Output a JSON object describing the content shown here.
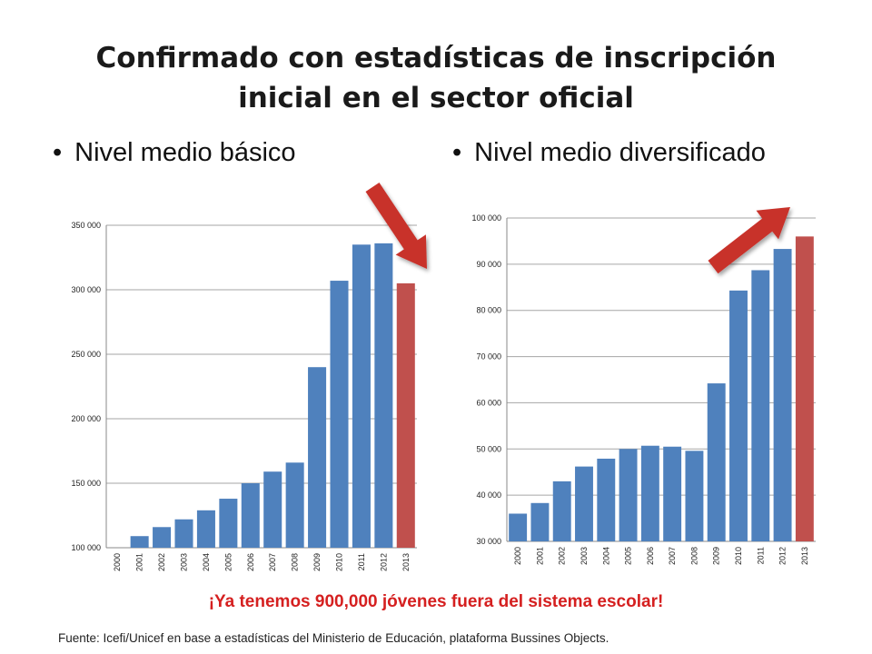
{
  "slide": {
    "title_line1": "Confirmado con estadísticas de inscripción",
    "title_line2": "inicial en el sector oficial",
    "left_heading": "Nivel medio básico",
    "right_heading": "Nivel medio diversificado",
    "highlight": "¡Ya tenemos 900,000 jóvenes fuera del sistema escolar!",
    "source": "Fuente: Icefi/Unicef en base a estadísticas del Ministerio de Educación, plataforma Bussines Objects.",
    "bullet": "•"
  },
  "colors": {
    "bar": "#4f81bd",
    "highlight_bar": "#c0504d",
    "arrow": "#c8312c",
    "grid": "#a6a6a6",
    "highlight_text": "#d52020"
  },
  "chart_data": [
    {
      "type": "bar",
      "title": "",
      "xlabel": "",
      "ylabel": "",
      "ylim": [
        100000,
        350000
      ],
      "yticks": [
        "100 000",
        "150 000",
        "200 000",
        "250 000",
        "300 000",
        "350 000"
      ],
      "grid": true,
      "categories": [
        "2000",
        "2001",
        "2002",
        "2003",
        "2004",
        "2005",
        "2006",
        "2007",
        "2008",
        "2009",
        "2010",
        "2011",
        "2012",
        "2013"
      ],
      "values": [
        100000,
        109000,
        116000,
        122000,
        129000,
        138000,
        150000,
        159000,
        166000,
        240000,
        307000,
        335000,
        336000,
        305000
      ],
      "highlight_index": 13,
      "annotation_arrow": "down"
    },
    {
      "type": "bar",
      "title": "",
      "xlabel": "",
      "ylabel": "",
      "ylim": [
        30000,
        100000
      ],
      "yticks": [
        "30 000",
        "40 000",
        "50 000",
        "60 000",
        "70 000",
        "80 000",
        "90 000",
        "100 000"
      ],
      "grid": true,
      "categories": [
        "2000",
        "2001",
        "2002",
        "2003",
        "2004",
        "2005",
        "2006",
        "2007",
        "2008",
        "2009",
        "2010",
        "2011",
        "2012",
        "2013"
      ],
      "values": [
        36000,
        38300,
        43000,
        46200,
        47900,
        50000,
        50700,
        50500,
        49600,
        64200,
        84300,
        88700,
        93300,
        96000
      ],
      "highlight_index": 13,
      "annotation_arrow": "up"
    }
  ]
}
